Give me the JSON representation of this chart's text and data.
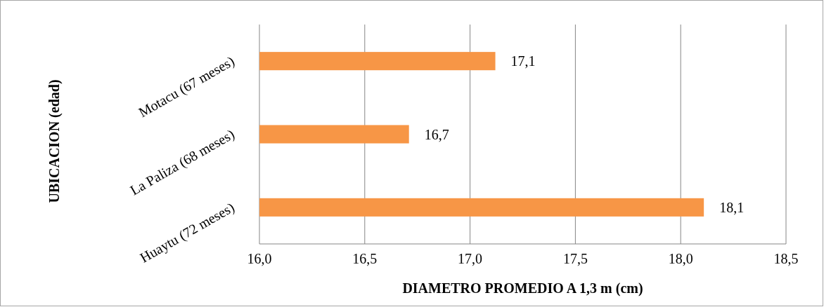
{
  "chart_data": {
    "type": "bar",
    "orientation": "horizontal",
    "xlabel": "DIAMETRO  PROMEDIO  A 1,3 m (cm)",
    "ylabel": "UBICACION (edad)",
    "categories": [
      "Motacu (67 meses)",
      "La Paliza (68 meses)",
      "Huaytu (72 meses)"
    ],
    "values": [
      17.12,
      16.71,
      18.11
    ],
    "value_labels": [
      "17,1",
      "16,7",
      "18,1"
    ],
    "color": "#f79646",
    "xlim": [
      16.0,
      18.5
    ],
    "xticks": [
      {
        "value": 16.0,
        "label": "16,0"
      },
      {
        "value": 16.5,
        "label": "16,5"
      },
      {
        "value": 17.0,
        "label": "17,0"
      },
      {
        "value": 17.5,
        "label": "17,5"
      },
      {
        "value": 18.0,
        "label": "18,0"
      },
      {
        "value": 18.5,
        "label": "18,5"
      }
    ],
    "grid": "x"
  }
}
